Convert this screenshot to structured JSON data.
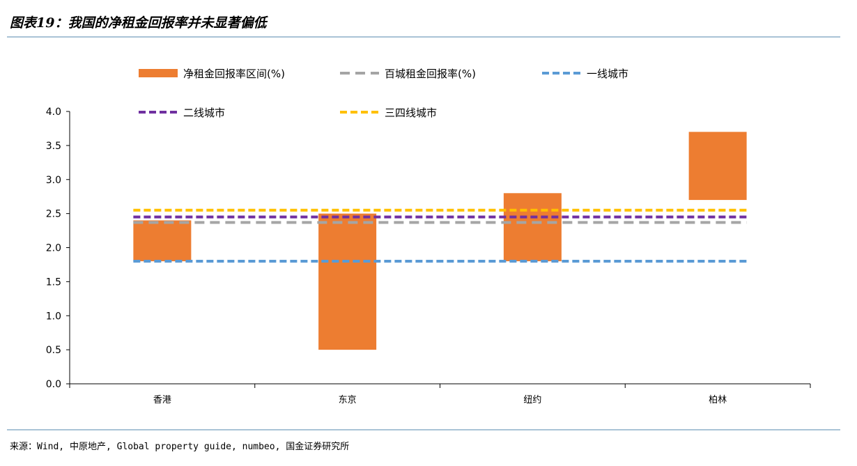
{
  "figure": {
    "title": "图表19：我国的净租金回报率并未显著偏低",
    "source": "来源：Wind, 中原地产, Global property guide, numbeo, 国金证券研究所"
  },
  "colors": {
    "range_bar": "#ed7d31",
    "baicheng": "#a5a5a5",
    "tier1": "#5b9bd5",
    "tier2": "#7030a0",
    "tier34": "#ffc000",
    "rule": "#a9c3d6"
  },
  "chart_data": {
    "type": "bar",
    "categories": [
      "香港",
      "东京",
      "纽约",
      "柏林"
    ],
    "series": [
      {
        "name": "净租金回报率区间(%)",
        "kind": "floating-bar",
        "low": [
          1.8,
          0.5,
          1.8,
          2.7
        ],
        "high": [
          2.4,
          2.5,
          2.8,
          3.7
        ]
      },
      {
        "name": "百城租金回报率(%)",
        "kind": "line",
        "values": [
          2.37,
          2.37,
          2.37,
          2.37
        ]
      },
      {
        "name": "一线城市",
        "kind": "line",
        "values": [
          1.8,
          1.8,
          1.8,
          1.8
        ]
      },
      {
        "name": "二线城市",
        "kind": "line",
        "values": [
          2.45,
          2.45,
          2.45,
          2.45
        ]
      },
      {
        "name": "三四线城市",
        "kind": "line",
        "values": [
          2.55,
          2.55,
          2.55,
          2.55
        ]
      }
    ],
    "ylim": [
      0,
      4.0
    ],
    "yticks": [
      "0.0",
      "0.5",
      "1.0",
      "1.5",
      "2.0",
      "2.5",
      "3.0",
      "3.5",
      "4.0"
    ],
    "grid": false,
    "legend_position": "top"
  }
}
